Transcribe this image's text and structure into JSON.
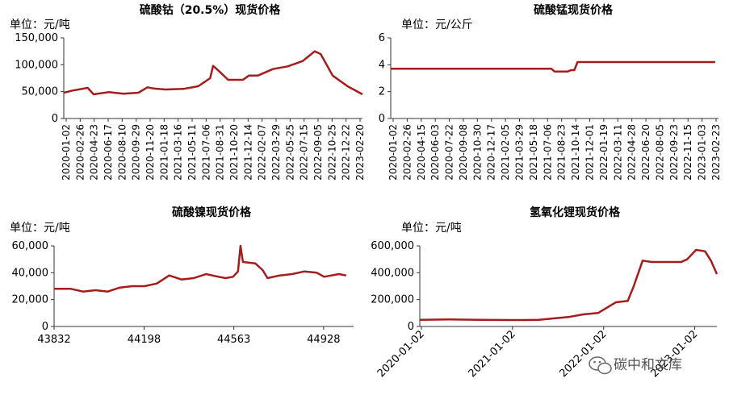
{
  "watermark": "碳中和文库",
  "charts": [
    {
      "title": "硫酸钴（20.5%）现货价格",
      "ylabel": "单位：元/吨",
      "chart_data": {
        "type": "line",
        "title": "硫酸钴（20.5%）现货价格",
        "ylabel": "单位：元/吨",
        "ylim": [
          0,
          150000
        ],
        "yticks": [
          0,
          50000,
          100000,
          150000
        ],
        "ytick_labels": [
          "0",
          "50,000",
          "100,000",
          "150,000"
        ],
        "xtick_labels": [
          "2020-01-02",
          "2020-02-26",
          "2020-04-23",
          "2020-06-17",
          "2020-08-10",
          "2020-09-29",
          "2020-11-20",
          "2021-01-18",
          "2021-03-16",
          "2021-05-11",
          "2021-07-06",
          "2021-08-31",
          "2021-10-20",
          "2021-12-14",
          "2022-02-07",
          "2022-03-29",
          "2022-05-25",
          "2022-07-15",
          "2022-09-05",
          "2022-10-25",
          "2022-12-22",
          "2023-02-20"
        ],
        "series_color": "#A51C1C",
        "x": [
          0,
          0.03,
          0.08,
          0.1,
          0.15,
          0.2,
          0.25,
          0.28,
          0.3,
          0.34,
          0.4,
          0.45,
          0.49,
          0.5,
          0.52,
          0.55,
          0.6,
          0.62,
          0.65,
          0.7,
          0.75,
          0.8,
          0.84,
          0.86,
          0.9,
          0.95,
          1.0
        ],
        "values": [
          48000,
          52000,
          57000,
          45000,
          49000,
          46000,
          48000,
          58000,
          56000,
          54000,
          55000,
          60000,
          75000,
          98000,
          88000,
          72000,
          72000,
          80000,
          80000,
          92000,
          97000,
          107000,
          125000,
          120000,
          80000,
          60000,
          45000
        ]
      }
    },
    {
      "title": "硫酸锰现货价格",
      "ylabel": "单位：元/公斤",
      "chart_data": {
        "type": "line",
        "title": "硫酸锰现货价格",
        "ylabel": "单位：元/公斤",
        "ylim": [
          0,
          6
        ],
        "yticks": [
          0,
          2,
          4,
          6
        ],
        "ytick_labels": [
          "0",
          "2",
          "4",
          "6"
        ],
        "xtick_labels": [
          "2020-01-02",
          "2020-02-26",
          "2020-04-15",
          "2020-06-03",
          "2020-07-22",
          "2020-09-08",
          "2020-10-30",
          "2020-12-17",
          "2021-02-05",
          "2021-03-29",
          "2021-05-18",
          "2021-07-06",
          "2021-08-23",
          "2021-10-14",
          "2021-12-01",
          "2022-01-19",
          "2022-03-11",
          "2022-04-28",
          "2022-06-20",
          "2022-08-05",
          "2022-09-23",
          "2022-11-15",
          "2023-01-03",
          "2023-02-23"
        ],
        "series_color": "#A51C1C",
        "x": [
          0,
          0.49,
          0.5,
          0.54,
          0.55,
          0.56,
          0.57,
          0.99
        ],
        "values": [
          3.7,
          3.7,
          3.5,
          3.5,
          3.6,
          3.6,
          4.2,
          4.2
        ]
      }
    },
    {
      "title": "硫酸镍现货价格",
      "ylabel": "单位：元/吨",
      "chart_data": {
        "type": "line",
        "title": "硫酸镍现货价格",
        "ylabel": "单位：元/吨",
        "ylim": [
          0,
          60000
        ],
        "xlim": [
          43832,
          45050
        ],
        "yticks": [
          0,
          20000,
          40000,
          60000
        ],
        "ytick_labels": [
          "0",
          "20,000",
          "40,000",
          "60,000"
        ],
        "xticks": [
          43832,
          44198,
          44563,
          44928
        ],
        "xtick_labels": [
          "43832",
          "44198",
          "44563",
          "44928"
        ],
        "series_color": "#A51C1C",
        "x": [
          43832,
          43900,
          43950,
          44000,
          44050,
          44100,
          44150,
          44190,
          44200,
          44250,
          44300,
          44350,
          44400,
          44450,
          44500,
          44530,
          44560,
          44580,
          44590,
          44600,
          44650,
          44680,
          44700,
          44750,
          44800,
          44850,
          44900,
          44930,
          44960,
          44990,
          45020
        ],
        "values": [
          28000,
          28000,
          26000,
          27000,
          26000,
          29000,
          30000,
          30000,
          30000,
          32000,
          38000,
          35000,
          36000,
          39000,
          37000,
          36000,
          37000,
          41000,
          60000,
          48000,
          47000,
          42000,
          36000,
          38000,
          39000,
          41000,
          40000,
          37000,
          38000,
          39000,
          38000
        ]
      }
    },
    {
      "title": "氢氧化锂现货价格",
      "ylabel": "单位：元/吨",
      "chart_data": {
        "type": "line",
        "title": "氢氧化锂现货价格",
        "ylabel": "单位：元/吨",
        "ylim": [
          0,
          600000
        ],
        "yticks": [
          0,
          200000,
          400000,
          600000
        ],
        "ytick_labels": [
          "0",
          "200,000",
          "400,000",
          "600,000"
        ],
        "xtick_labels": [
          "2020-01-02",
          "2021-01-02",
          "2022-01-02",
          "2023-01-02"
        ],
        "series_color": "#A51C1C",
        "x": [
          0,
          0.1,
          0.2,
          0.3,
          0.35,
          0.4,
          0.5,
          0.55,
          0.6,
          0.63,
          0.66,
          0.7,
          0.72,
          0.75,
          0.78,
          0.83,
          0.88,
          0.9,
          0.93,
          0.96,
          0.98,
          1.0
        ],
        "values": [
          50000,
          52000,
          50000,
          48000,
          48000,
          50000,
          70000,
          90000,
          100000,
          140000,
          180000,
          190000,
          300000,
          490000,
          480000,
          480000,
          480000,
          500000,
          570000,
          560000,
          490000,
          390000
        ]
      }
    }
  ]
}
